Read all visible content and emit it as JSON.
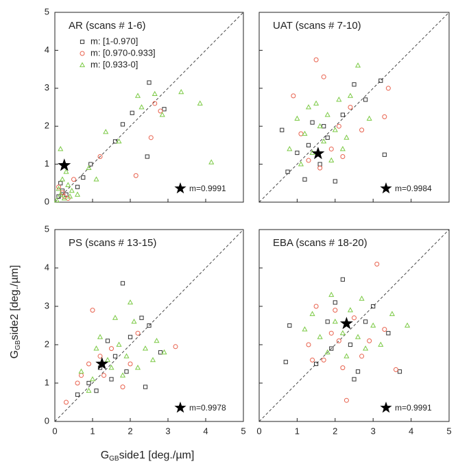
{
  "figure": {
    "xlabel": {
      "main": "G",
      "sub": "GB",
      "rest": "side1 [deg./µm]"
    },
    "ylabel": {
      "main": "G",
      "sub": "GB",
      "rest": "side2 [deg./µm]"
    }
  },
  "chart_data": [
    {
      "type": "scatter",
      "title": "AR (scans # 1-6)",
      "xlim": [
        0,
        5
      ],
      "ylim": [
        0,
        5
      ],
      "xticks": [
        0,
        1,
        2,
        3,
        4,
        5
      ],
      "yticks": [
        0,
        1,
        2,
        3,
        4,
        5
      ],
      "show_xtick_labels": false,
      "show_ytick_labels": true,
      "legend": true,
      "series": [
        {
          "name": "m: [1-0.970]",
          "color": "#333333",
          "marker": "square",
          "x": [
            2.5,
            2.05,
            1.8,
            0.95,
            0.75,
            2.45,
            0.1,
            0.2,
            0.3,
            0.15,
            1.6,
            2.9,
            0.6
          ],
          "y": [
            3.15,
            2.35,
            2.05,
            1.0,
            0.65,
            1.2,
            0.15,
            0.3,
            0.2,
            0.5,
            1.6,
            2.45,
            0.4
          ]
        },
        {
          "name": "m: [0.970-0.933]",
          "color": "#e8604c",
          "marker": "circle",
          "x": [
            2.65,
            2.8,
            2.55,
            2.15,
            0.2,
            0.35,
            0.1,
            1.2,
            0.5,
            0.25
          ],
          "y": [
            2.6,
            2.4,
            1.7,
            0.7,
            0.25,
            0.1,
            0.4,
            1.2,
            0.6,
            0.15
          ]
        },
        {
          "name": "m: [0.933-0]",
          "color": "#7ac943",
          "marker": "triangle",
          "x": [
            2.2,
            3.35,
            3.85,
            4.15,
            2.65,
            1.35,
            1.7,
            0.9,
            2.3,
            2.85,
            0.15,
            0.2,
            0.3,
            0.1,
            0.25,
            0.35,
            0.45,
            0.15,
            0.05,
            0.4,
            1.1,
            0.6
          ],
          "y": [
            2.8,
            2.9,
            2.6,
            1.05,
            2.85,
            1.85,
            1.6,
            0.9,
            2.5,
            2.3,
            1.4,
            0.6,
            0.8,
            0.35,
            0.1,
            0.45,
            0.3,
            0.2,
            0.05,
            0.15,
            0.6,
            0.2
          ]
        }
      ],
      "star": {
        "x": 0.25,
        "y": 0.97
      },
      "star_label": "m=0.9991"
    },
    {
      "type": "scatter",
      "title": "UAT (scans # 7-10)",
      "xlim": [
        0,
        5
      ],
      "ylim": [
        0,
        5
      ],
      "xticks": [
        0,
        1,
        2,
        3,
        4,
        5
      ],
      "yticks": [
        0,
        1,
        2,
        3,
        4,
        5
      ],
      "show_xtick_labels": false,
      "show_ytick_labels": false,
      "legend": false,
      "series": [
        {
          "name": "m: [1-0.970]",
          "color": "#333333",
          "marker": "square",
          "x": [
            0.6,
            0.75,
            1.0,
            1.2,
            1.4,
            1.6,
            1.8,
            2.0,
            2.2,
            2.5,
            3.2,
            3.3,
            1.3,
            1.7,
            2.8
          ],
          "y": [
            1.9,
            0.8,
            1.3,
            0.6,
            2.1,
            1.0,
            1.7,
            0.55,
            2.3,
            3.1,
            3.2,
            1.25,
            1.5,
            2.0,
            2.7
          ]
        },
        {
          "name": "m: [0.970-0.933]",
          "color": "#e8604c",
          "marker": "circle",
          "x": [
            0.9,
            1.1,
            1.3,
            1.5,
            1.7,
            1.9,
            2.1,
            2.4,
            2.7,
            3.3,
            3.4,
            1.6,
            2.2
          ],
          "y": [
            2.8,
            1.8,
            1.1,
            3.75,
            3.3,
            1.4,
            2.0,
            2.5,
            1.9,
            2.25,
            3.0,
            0.9,
            1.2
          ]
        },
        {
          "name": "m: [0.933-0]",
          "color": "#7ac943",
          "marker": "triangle",
          "x": [
            0.8,
            1.0,
            1.2,
            1.4,
            1.5,
            1.7,
            1.8,
            2.0,
            2.2,
            2.4,
            2.6,
            2.9,
            1.1,
            1.3,
            1.9,
            2.1,
            2.3,
            1.6
          ],
          "y": [
            1.4,
            2.2,
            1.8,
            1.3,
            2.6,
            1.6,
            2.3,
            1.9,
            1.4,
            2.8,
            3.6,
            2.2,
            1.0,
            2.5,
            1.1,
            2.7,
            1.7,
            2.0
          ]
        }
      ],
      "star": {
        "x": 1.55,
        "y": 1.28
      },
      "star_label": "m=0.9984"
    },
    {
      "type": "scatter",
      "title": "PS (scans # 13-15)",
      "xlim": [
        0,
        5
      ],
      "ylim": [
        0,
        5
      ],
      "xticks": [
        0,
        1,
        2,
        3,
        4,
        5
      ],
      "yticks": [
        0,
        1,
        2,
        3,
        4,
        5
      ],
      "show_xtick_labels": true,
      "show_ytick_labels": true,
      "legend": false,
      "series": [
        {
          "name": "m: [1-0.970]",
          "color": "#333333",
          "marker": "square",
          "x": [
            0.6,
            0.9,
            1.2,
            1.4,
            1.6,
            1.8,
            2.0,
            2.3,
            2.5,
            2.8,
            1.5,
            1.1,
            1.9,
            2.4
          ],
          "y": [
            0.7,
            1.0,
            1.4,
            2.1,
            1.7,
            3.6,
            2.2,
            2.7,
            2.5,
            1.8,
            1.1,
            0.8,
            1.3,
            0.9
          ]
        },
        {
          "name": "m: [0.970-0.933]",
          "color": "#e8604c",
          "marker": "circle",
          "x": [
            0.3,
            0.6,
            0.9,
            1.0,
            1.3,
            1.5,
            1.8,
            2.0,
            2.2,
            3.2,
            1.2,
            0.7
          ],
          "y": [
            0.5,
            1.0,
            1.5,
            2.9,
            1.2,
            1.9,
            0.9,
            1.5,
            2.3,
            1.95,
            1.7,
            1.2
          ]
        },
        {
          "name": "m: [0.933-0]",
          "color": "#7ac943",
          "marker": "triangle",
          "x": [
            0.7,
            1.0,
            1.2,
            1.4,
            1.6,
            1.8,
            2.0,
            2.2,
            2.4,
            2.6,
            2.9,
            1.1,
            1.5,
            1.7,
            1.9,
            2.1,
            0.9,
            2.7
          ],
          "y": [
            1.3,
            1.1,
            2.2,
            1.6,
            2.7,
            1.2,
            3.1,
            1.4,
            1.9,
            1.6,
            1.8,
            1.9,
            1.4,
            2.0,
            1.7,
            2.6,
            0.8,
            2.1
          ]
        }
      ],
      "star": {
        "x": 1.25,
        "y": 1.5
      },
      "star_label": "m=0.9978"
    },
    {
      "type": "scatter",
      "title": "EBA (scans # 18-20)",
      "xlim": [
        0,
        5
      ],
      "ylim": [
        0,
        5
      ],
      "xticks": [
        0,
        1,
        2,
        3,
        4,
        5
      ],
      "yticks": [
        0,
        1,
        2,
        3,
        4,
        5
      ],
      "show_xtick_labels": true,
      "show_ytick_labels": false,
      "legend": false,
      "series": [
        {
          "name": "m: [1-0.970]",
          "color": "#333333",
          "marker": "square",
          "x": [
            0.7,
            0.8,
            1.5,
            1.8,
            2.0,
            2.2,
            2.4,
            2.6,
            2.8,
            3.0,
            3.4,
            3.7,
            2.5,
            1.9
          ],
          "y": [
            1.55,
            2.5,
            1.5,
            2.6,
            3.1,
            3.7,
            2.0,
            1.3,
            2.6,
            3.0,
            2.3,
            1.3,
            1.1,
            1.9
          ]
        },
        {
          "name": "m: [0.970-0.933]",
          "color": "#e8604c",
          "marker": "circle",
          "x": [
            1.3,
            1.5,
            1.7,
            1.9,
            2.1,
            2.3,
            2.5,
            2.7,
            2.9,
            3.1,
            3.3,
            3.6,
            2.2,
            2.0,
            1.4
          ],
          "y": [
            2.0,
            3.0,
            1.6,
            2.3,
            2.1,
            0.55,
            2.7,
            1.7,
            2.1,
            4.1,
            2.4,
            1.35,
            1.4,
            2.9,
            1.6
          ]
        },
        {
          "name": "m: [0.933-0]",
          "color": "#7ac943",
          "marker": "triangle",
          "x": [
            1.2,
            1.4,
            1.6,
            1.8,
            2.0,
            2.2,
            2.4,
            2.6,
            2.8,
            3.0,
            3.2,
            3.5,
            3.9,
            1.9,
            2.3,
            2.7
          ],
          "y": [
            2.4,
            2.8,
            2.2,
            1.8,
            2.6,
            2.3,
            2.9,
            2.2,
            1.9,
            2.5,
            2.0,
            2.8,
            2.5,
            3.3,
            1.7,
            3.2
          ]
        }
      ],
      "star": {
        "x": 2.3,
        "y": 2.55
      },
      "star_label": "m=0.9991"
    }
  ]
}
